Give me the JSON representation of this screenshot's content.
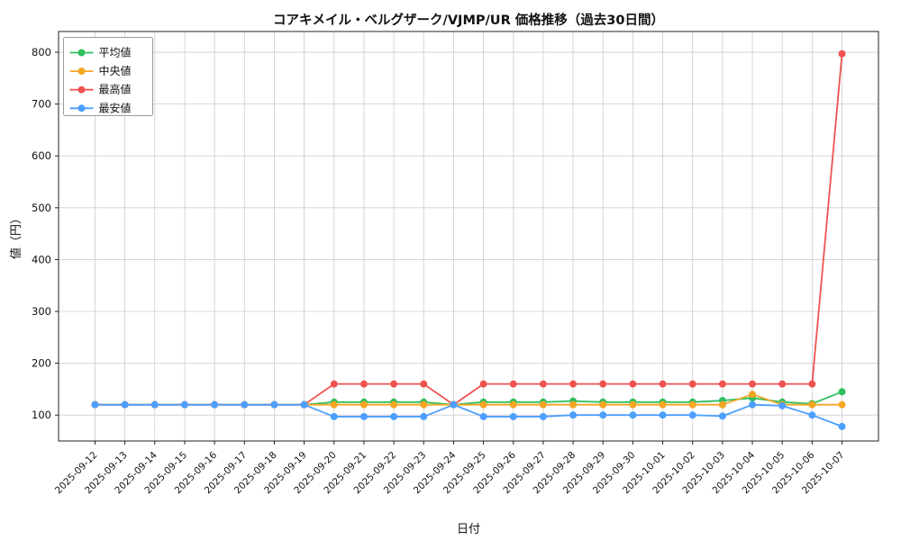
{
  "title": "コアキメイル・ベルグザーク/VJMP/UR 価格推移（過去30日間）",
  "xlabel": "日付",
  "ylabel": "値（円）",
  "legend": {
    "position": "upper-left",
    "items": [
      {
        "label": "平均値",
        "color": "#2fbf5f"
      },
      {
        "label": "中央値",
        "color": "#f5a623"
      },
      {
        "label": "最高値",
        "color": "#ef5350"
      },
      {
        "label": "最安値",
        "color": "#4d9fff"
      }
    ]
  },
  "chart_data": {
    "type": "line",
    "title": "コアキメイル・ベルグザーク/VJMP/UR 価格推移（過去30日間）",
    "xlabel": "日付",
    "ylabel": "値（円）",
    "grid": true,
    "legend_position": "upper left",
    "ylim": [
      50,
      840
    ],
    "yticks": [
      100,
      200,
      300,
      400,
      500,
      600,
      700,
      800
    ],
    "x": [
      "2025-09-12",
      "2025-09-13",
      "2025-09-14",
      "2025-09-15",
      "2025-09-16",
      "2025-09-17",
      "2025-09-18",
      "2025-09-19",
      "2025-09-20",
      "2025-09-21",
      "2025-09-22",
      "2025-09-23",
      "2025-09-24",
      "2025-09-25",
      "2025-09-26",
      "2025-09-27",
      "2025-09-28",
      "2025-09-29",
      "2025-09-30",
      "2025-10-01",
      "2025-10-02",
      "2025-10-03",
      "2025-10-04",
      "2025-10-05",
      "2025-10-06",
      "2025-10-07"
    ],
    "series": [
      {
        "name": "平均値",
        "color": "#2fbf5f",
        "values": [
          120,
          120,
          120,
          120,
          120,
          120,
          120,
          120,
          125,
          125,
          125,
          125,
          120,
          125,
          125,
          125,
          127,
          125,
          125,
          125,
          125,
          128,
          133,
          125,
          122,
          145
        ]
      },
      {
        "name": "中央値",
        "color": "#f5a623",
        "values": [
          120,
          120,
          120,
          120,
          120,
          120,
          120,
          120,
          120,
          120,
          120,
          120,
          120,
          120,
          120,
          120,
          120,
          120,
          120,
          120,
          120,
          120,
          140,
          120,
          120,
          120
        ]
      },
      {
        "name": "最高値",
        "color": "#ef5350",
        "values": [
          120,
          120,
          120,
          120,
          120,
          120,
          120,
          120,
          160,
          160,
          160,
          160,
          120,
          160,
          160,
          160,
          160,
          160,
          160,
          160,
          160,
          160,
          160,
          160,
          160,
          797
        ]
      },
      {
        "name": "最安値",
        "color": "#4d9fff",
        "values": [
          120,
          120,
          120,
          120,
          120,
          120,
          120,
          120,
          97,
          97,
          97,
          97,
          120,
          97,
          97,
          97,
          100,
          100,
          100,
          100,
          100,
          98,
          120,
          118,
          100,
          78
        ]
      }
    ]
  }
}
